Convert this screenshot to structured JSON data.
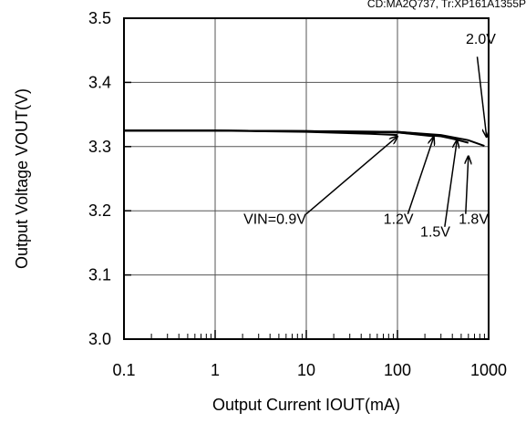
{
  "chart_data": {
    "type": "line",
    "note": "CD:MA2Q737, Tr:XP161A1355P",
    "xlabel": "Output Current IOUT(mA)",
    "ylabel": "Output Voltage VOUT(V)",
    "x_scale": "log",
    "xlim": [
      0.1,
      1000
    ],
    "ylim": [
      3.0,
      3.5
    ],
    "x_ticks": [
      0.1,
      1,
      10,
      100,
      1000
    ],
    "x_tick_labels": [
      "0.1",
      "1",
      "10",
      "100",
      "1000"
    ],
    "y_ticks": [
      3.0,
      3.1,
      3.2,
      3.3,
      3.4,
      3.5
    ],
    "y_tick_labels": [
      "3.0",
      "3.1",
      "3.2",
      "3.3",
      "3.4",
      "3.5"
    ],
    "grid": true,
    "series": [
      {
        "name": "VIN=0.9V",
        "x": [
          0.1,
          1,
          10,
          50,
          100
        ],
        "y": [
          3.325,
          3.325,
          3.323,
          3.32,
          3.318
        ]
      },
      {
        "name": "1.2V",
        "x": [
          0.1,
          1,
          10,
          100,
          250
        ],
        "y": [
          3.325,
          3.325,
          3.324,
          3.322,
          3.316
        ]
      },
      {
        "name": "1.5V",
        "x": [
          0.1,
          1,
          10,
          100,
          300,
          450
        ],
        "y": [
          3.325,
          3.325,
          3.324,
          3.322,
          3.316,
          3.311
        ]
      },
      {
        "name": "1.8V",
        "x": [
          0.1,
          1,
          10,
          100,
          300,
          600
        ],
        "y": [
          3.325,
          3.325,
          3.324,
          3.323,
          3.317,
          3.306
        ]
      },
      {
        "name": "2.0V",
        "x": [
          0.1,
          1,
          10,
          100,
          300,
          600,
          900
        ],
        "y": [
          3.325,
          3.325,
          3.324,
          3.323,
          3.318,
          3.31,
          3.301
        ]
      }
    ],
    "annotations": [
      {
        "text": "VIN=0.9V",
        "series": "VIN=0.9V",
        "label_xy": [
          10,
          3.18
        ],
        "arrow_from": [
          10,
          3.195
        ],
        "arrow_to": [
          100,
          3.316
        ]
      },
      {
        "text": "1.2V",
        "series": "1.2V",
        "label_xy": [
          150,
          3.18
        ],
        "arrow_from": [
          130,
          3.195
        ],
        "arrow_to": [
          250,
          3.315
        ]
      },
      {
        "text": "1.5V",
        "series": "1.5V",
        "label_xy": [
          380,
          3.16
        ],
        "arrow_from": [
          330,
          3.175
        ],
        "arrow_to": [
          450,
          3.31
        ]
      },
      {
        "text": "1.8V",
        "series": "1.8V",
        "label_xy": [
          1000,
          3.18
        ],
        "arrow_from": [
          560,
          3.195
        ],
        "arrow_to": [
          600,
          3.285
        ]
      },
      {
        "text": "2.0V",
        "series": "2.0V",
        "label_xy": [
          1200,
          3.46
        ],
        "arrow_from": [
          750,
          3.44
        ],
        "arrow_to": [
          950,
          3.315
        ]
      }
    ]
  }
}
